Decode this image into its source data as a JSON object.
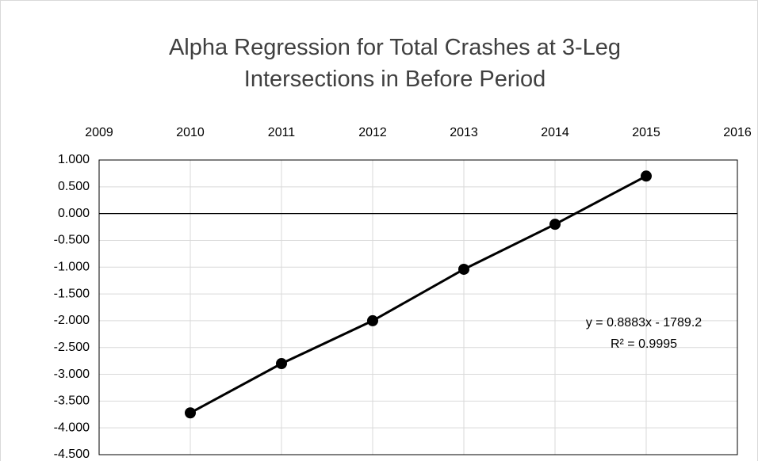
{
  "chart_data": {
    "type": "line",
    "title": "Alpha Regression for Total Crashes at 3-Leg Intersections in Before Period",
    "x": [
      2010,
      2011,
      2012,
      2013,
      2014,
      2015
    ],
    "series": [
      {
        "color": "#000000",
        "values": [
          -3.72,
          -2.8,
          -2.0,
          -1.04,
          -0.2,
          0.7
        ]
      }
    ],
    "xlim": [
      2009,
      2016
    ],
    "xticks": [
      2009,
      2010,
      2011,
      2012,
      2013,
      2014,
      2015,
      2016
    ],
    "ylim": [
      -4.5,
      1.0
    ],
    "yticks": [
      {
        "value": 1.0,
        "label": "1.000"
      },
      {
        "value": 0.5,
        "label": "0.500"
      },
      {
        "value": 0,
        "label": "0.000"
      },
      {
        "value": -0.5,
        "label": "-0.500"
      },
      {
        "value": -1.0,
        "label": "-1.000"
      },
      {
        "value": -1.5,
        "label": "-1.500"
      },
      {
        "value": -2.0,
        "label": "-2.000"
      },
      {
        "value": -2.5,
        "label": "-2.500"
      },
      {
        "value": -3.0,
        "label": "-3.000"
      },
      {
        "value": -3.5,
        "label": "-3.500"
      },
      {
        "value": -4.0,
        "label": "-4.000"
      },
      {
        "value": -4.5,
        "label": "-4.500"
      }
    ],
    "annotations": [
      "y = 0.8883x - 1789.2",
      "R² = 0.9995"
    ],
    "grid": true
  }
}
